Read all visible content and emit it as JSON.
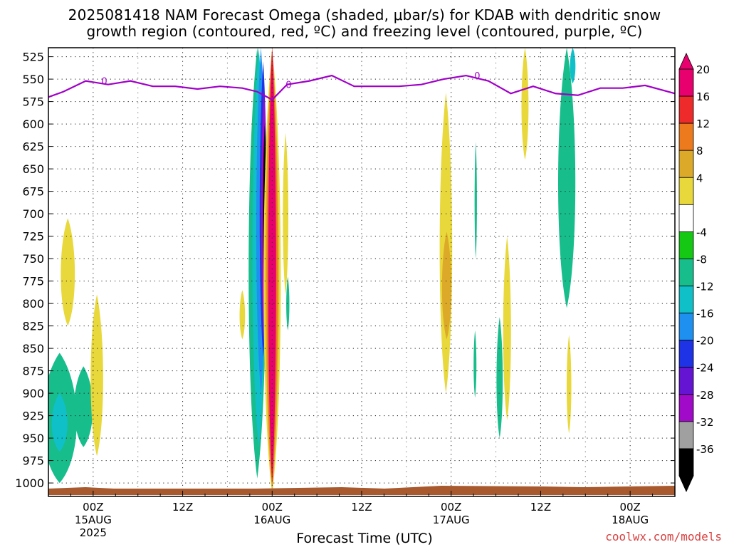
{
  "title_line1": "2025081418 NAM Forecast Omega (shaded, μbar/s) for KDAB with dendritic snow",
  "title_line2": "growth region (contoured, red, ºC) and freezing level (contoured, purple, ºC)",
  "credit": "coolwx.com/models",
  "chart_data": {
    "type": "heatmap",
    "xlabel": "Forecast Time (UTC)",
    "ylabel": "",
    "x_ticks": [
      {
        "hour": 6,
        "label": "00Z",
        "sub": "15AUG",
        "sub2": "2025"
      },
      {
        "hour": 18,
        "label": "12Z",
        "sub": "",
        "sub2": ""
      },
      {
        "hour": 30,
        "label": "00Z",
        "sub": "16AUG",
        "sub2": ""
      },
      {
        "hour": 42,
        "label": "12Z",
        "sub": "",
        "sub2": ""
      },
      {
        "hour": 54,
        "label": "00Z",
        "sub": "17AUG",
        "sub2": ""
      },
      {
        "hour": 66,
        "label": "12Z",
        "sub": "",
        "sub2": ""
      },
      {
        "hour": 78,
        "label": "00Z",
        "sub": "18AUG",
        "sub2": ""
      }
    ],
    "xlim": [
      0,
      84
    ],
    "y_ticks": [
      525,
      550,
      575,
      600,
      625,
      650,
      675,
      700,
      725,
      750,
      775,
      800,
      825,
      850,
      875,
      900,
      925,
      950,
      975,
      1000
    ],
    "ylim": [
      515,
      1015
    ],
    "grid": true,
    "colorbar": {
      "labels": [
        "20",
        "16",
        "12",
        "8",
        "4",
        "-4",
        "-8",
        "-12",
        "-16",
        "-20",
        "-24",
        "-28",
        "-32",
        "-36"
      ],
      "colors": [
        "#e8006e",
        "#ee2a2a",
        "#ee7a1e",
        "#dcaa28",
        "#e8d83c",
        "#ffffff",
        "#14c814",
        "#18bd8c",
        "#10c0c8",
        "#1e90f0",
        "#1e32e6",
        "#6414d2",
        "#a00ac8",
        "#a0a0a0",
        "#000000"
      ]
    },
    "freezing_level": {
      "color": "#a000c8",
      "contour_label": "0",
      "hours": [
        0,
        2,
        5,
        8,
        11,
        14,
        17,
        20,
        23,
        26,
        28,
        30,
        32,
        35,
        38,
        41,
        44,
        47,
        50,
        53,
        56,
        59,
        62,
        65,
        68,
        71,
        74,
        77,
        80,
        84
      ],
      "pressure_mb": [
        570,
        564,
        552,
        556,
        552,
        558,
        558,
        561,
        558,
        560,
        564,
        573,
        556,
        552,
        546,
        558,
        558,
        558,
        556,
        550,
        546,
        552,
        566,
        558,
        566,
        568,
        560,
        560,
        557,
        566
      ]
    },
    "omega_regions": [
      {
        "level": "-8",
        "hour_center": 1.5,
        "p_top": 855,
        "p_bottom": 1000,
        "halfwidth_h": 2.2
      },
      {
        "level": "-8",
        "hour_center": 4.7,
        "p_top": 870,
        "p_bottom": 960,
        "halfwidth_h": 1.2
      },
      {
        "level": "-12",
        "hour_center": 1.5,
        "p_top": 900,
        "p_bottom": 965,
        "halfwidth_h": 1.0
      },
      {
        "level": "4",
        "hour_center": 2.6,
        "p_top": 705,
        "p_bottom": 825,
        "halfwidth_h": 0.9
      },
      {
        "level": "4",
        "hour_center": 6.5,
        "p_top": 790,
        "p_bottom": 970,
        "halfwidth_h": 0.8
      },
      {
        "level": "4",
        "hour_center": 26.0,
        "p_top": 785,
        "p_bottom": 840,
        "halfwidth_h": 0.35
      },
      {
        "level": "-8",
        "hour_center": 28.0,
        "p_top": 515,
        "p_bottom": 995,
        "halfwidth_h": 1.1
      },
      {
        "level": "-12",
        "hour_center": 28.2,
        "p_top": 515,
        "p_bottom": 960,
        "halfwidth_h": 0.8
      },
      {
        "level": "-16",
        "hour_center": 28.5,
        "p_top": 515,
        "p_bottom": 900,
        "halfwidth_h": 0.6
      },
      {
        "level": "-20",
        "hour_center": 28.8,
        "p_top": 530,
        "p_bottom": 860,
        "halfwidth_h": 0.45
      },
      {
        "level": "-28",
        "hour_center": 28.9,
        "p_top": 560,
        "p_bottom": 840,
        "halfwidth_h": 0.35
      },
      {
        "level": "-36",
        "hour_center": 29.0,
        "p_top": 600,
        "p_bottom": 800,
        "halfwidth_h": 0.22
      },
      {
        "level": "4",
        "hour_center": 30.0,
        "p_top": 515,
        "p_bottom": 1012,
        "halfwidth_h": 1.1
      },
      {
        "level": "8",
        "hour_center": 30.0,
        "p_top": 515,
        "p_bottom": 1008,
        "halfwidth_h": 0.85
      },
      {
        "level": "12",
        "hour_center": 30.0,
        "p_top": 515,
        "p_bottom": 1004,
        "halfwidth_h": 0.7
      },
      {
        "level": "20",
        "hour_center": 30.0,
        "p_top": 515,
        "p_bottom": 1000,
        "halfwidth_h": 0.5
      },
      {
        "level": "-8",
        "hour_center": 32.1,
        "p_top": 770,
        "p_bottom": 830,
        "halfwidth_h": 0.2
      },
      {
        "level": "4",
        "hour_center": 31.8,
        "p_top": 610,
        "p_bottom": 790,
        "halfwidth_h": 0.35
      },
      {
        "level": "4",
        "hour_center": 53.3,
        "p_top": 565,
        "p_bottom": 900,
        "halfwidth_h": 0.8
      },
      {
        "level": "8",
        "hour_center": 53.4,
        "p_top": 720,
        "p_bottom": 840,
        "halfwidth_h": 0.6
      },
      {
        "level": "-8",
        "hour_center": 57.3,
        "p_top": 620,
        "p_bottom": 750,
        "halfwidth_h": 0.15
      },
      {
        "level": "-8",
        "hour_center": 57.2,
        "p_top": 830,
        "p_bottom": 905,
        "halfwidth_h": 0.18
      },
      {
        "level": "4",
        "hour_center": 61.5,
        "p_top": 725,
        "p_bottom": 930,
        "halfwidth_h": 0.5
      },
      {
        "level": "-8",
        "hour_center": 60.5,
        "p_top": 815,
        "p_bottom": 950,
        "halfwidth_h": 0.4
      },
      {
        "level": "4",
        "hour_center": 63.9,
        "p_top": 515,
        "p_bottom": 640,
        "halfwidth_h": 0.45
      },
      {
        "level": "-8",
        "hour_center": 69.5,
        "p_top": 515,
        "p_bottom": 805,
        "halfwidth_h": 1.1
      },
      {
        "level": "-12",
        "hour_center": 70.3,
        "p_top": 515,
        "p_bottom": 555,
        "halfwidth_h": 0.35
      },
      {
        "level": "4",
        "hour_center": 69.8,
        "p_top": 835,
        "p_bottom": 945,
        "halfwidth_h": 0.3
      }
    ]
  }
}
